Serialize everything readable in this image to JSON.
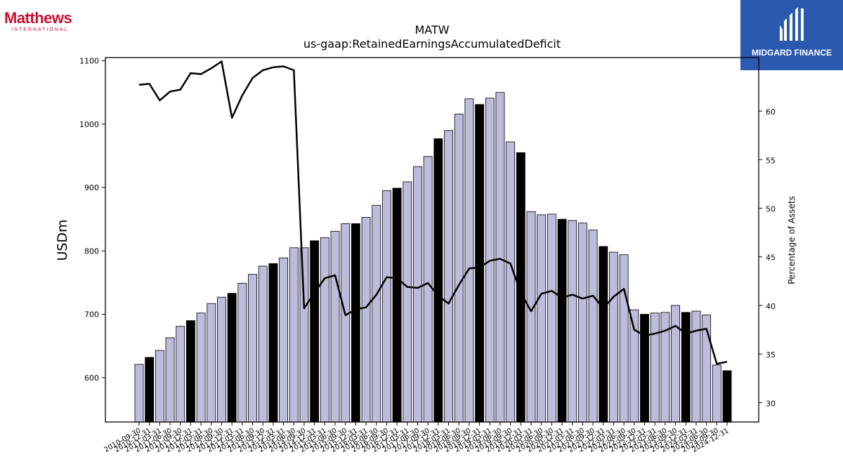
{
  "logos": {
    "left_name": "Matthews",
    "left_sub": "INTERNATIONAL",
    "right_name": "MIDGARD FINANCE"
  },
  "colors": {
    "bar_regular": "#bcbcdc",
    "bar_highlight": "#000000",
    "line": "#000000",
    "logo_left": "#c8102e",
    "logo_right_bg": "#2b59b0"
  },
  "chart_data": {
    "type": "bar",
    "title": "MATW",
    "subtitle": "us-gaap:RetainedEarningsAccumulatedDeficit",
    "ylabel": "USDm",
    "y2label": "Percentage of Assets",
    "ylim": [
      530,
      1105
    ],
    "y2lim": [
      28,
      65.5
    ],
    "yticks": [
      600,
      700,
      800,
      900,
      1000,
      1100
    ],
    "y2ticks": [
      30,
      35,
      40,
      45,
      50,
      55,
      60
    ],
    "grid": false,
    "categories": [
      "2010-09-30",
      "2010-12-31",
      "2011-03-31",
      "2011-06-30",
      "2011-09-30",
      "2011-12-31",
      "2012-03-31",
      "2012-06-30",
      "2012-09-30",
      "2012-12-31",
      "2013-03-31",
      "2013-06-30",
      "2013-09-30",
      "2013-12-31",
      "2014-03-31",
      "2014-06-30",
      "2014-09-30",
      "2014-12-31",
      "2015-03-31",
      "2015-06-30",
      "2015-09-30",
      "2015-12-31",
      "2016-03-31",
      "2016-06-30",
      "2016-09-30",
      "2016-12-31",
      "2017-03-31",
      "2017-06-30",
      "2017-09-30",
      "2017-12-31",
      "2018-03-31",
      "2018-06-30",
      "2018-09-30",
      "2018-12-31",
      "2019-03-31",
      "2019-06-30",
      "2019-09-30",
      "2019-12-31",
      "2020-03-31",
      "2020-06-30",
      "2020-09-30",
      "2020-12-31",
      "2021-03-31",
      "2021-06-30",
      "2021-09-30",
      "2021-12-31",
      "2022-03-31",
      "2022-06-30",
      "2022-09-30",
      "2022-12-31",
      "2023-03-31",
      "2023-06-30",
      "2023-09-30",
      "2023-12-31",
      "2024-03-31",
      "2024-06-30",
      "2024-09-30",
      "2024-12-31"
    ],
    "tick_labels_shown": [
      "2010-09-30",
      "2010-12-31",
      "2011-03-31",
      "2011-06-30",
      "2011-09-30",
      "2011-12-31",
      "2012-03-31",
      "2012-06-30",
      "2012-09-30",
      "2012-12-31",
      "2013-03-31",
      "2013-06-30",
      "2013-09-30",
      "2013-12-31",
      "2014-03-31",
      "2014-06-30",
      "2014-09-30",
      "2014-12-31",
      "2015-03-31",
      "2015-06-30",
      "2015-09-30",
      "2015-12-31",
      "2016-03-31",
      "2016-06-30",
      "2016-09-30",
      "2016-12-31",
      "2017-03-31",
      "2017-06-30",
      "2017-09-30",
      "2017-12-31",
      "2018-03-31",
      "2018-06-30",
      "2018-09-30",
      "2018-12-31",
      "2019-03-31",
      "2019-06-30",
      "2019-09-30",
      "2019-12-31",
      "2020-03-31",
      "2020-06-30",
      "2020-09-30",
      "2020-12-31",
      "2021-03-31",
      "2021-06-30",
      "2021-09-30",
      "2021-12-31",
      "2022-03-31",
      "2022-06-30",
      "2022-09-30",
      "2022-12-31",
      "2023-03-31",
      "2023-06-30",
      "2023-09-30",
      "2023-12-31",
      "2024-03-31",
      "2024-06-30",
      "2024-09-30",
      "2024-12-31"
    ],
    "values": [
      621,
      632,
      643,
      663,
      681,
      690,
      702,
      717,
      727,
      733,
      749,
      763,
      776,
      780,
      789,
      805,
      805,
      816,
      821,
      831,
      843,
      843,
      853,
      872,
      895,
      899,
      909,
      933,
      949,
      977,
      990,
      1016,
      1040,
      1031,
      1041,
      1050,
      972,
      955,
      862,
      857,
      858,
      850,
      848,
      844,
      833,
      807,
      798,
      794,
      707,
      700,
      702,
      703,
      714,
      703,
      705,
      699,
      620,
      611
    ],
    "highlight": [
      false,
      true,
      false,
      false,
      false,
      true,
      false,
      false,
      false,
      true,
      false,
      false,
      false,
      true,
      false,
      false,
      false,
      true,
      false,
      false,
      false,
      true,
      false,
      false,
      false,
      true,
      false,
      false,
      false,
      true,
      false,
      false,
      false,
      true,
      false,
      false,
      false,
      true,
      false,
      false,
      false,
      true,
      false,
      false,
      false,
      true,
      false,
      false,
      false,
      true,
      false,
      false,
      false,
      true,
      false,
      false,
      false,
      true
    ],
    "pct_series": [
      62.7,
      62.8,
      61.1,
      62.0,
      62.2,
      63.9,
      63.8,
      64.4,
      65.1,
      59.3,
      61.6,
      63.4,
      64.2,
      64.5,
      64.6,
      64.2,
      39.7,
      41.3,
      42.8,
      43.1,
      39.0,
      39.6,
      39.8,
      41.1,
      42.9,
      42.8,
      41.9,
      41.8,
      42.3,
      41.0,
      40.2,
      42.1,
      43.8,
      43.9,
      44.6,
      44.8,
      44.3,
      41.3,
      39.4,
      41.2,
      41.5,
      40.8,
      41.1,
      40.7,
      41.0,
      39.7,
      40.9,
      41.7,
      37.5,
      36.9,
      37.1,
      37.4,
      37.9,
      37.1,
      37.4,
      37.6,
      34.0,
      34.2
    ]
  }
}
